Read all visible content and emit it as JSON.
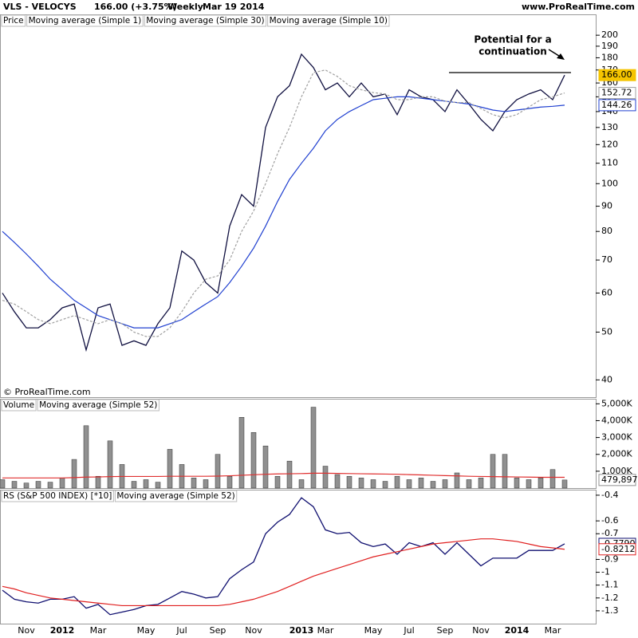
{
  "chart_data": [
    {
      "type": "line",
      "title": "VLS - VELOCYS",
      "subtitle": "166.00 (+3.75%)",
      "period": "Weekly",
      "date": "Mar 19 2014",
      "source": "www.ProRealTime.com",
      "copyright": "© ProRealTime.com",
      "panel_label": "Price",
      "annotation": [
        "Potential for a",
        "continuation"
      ],
      "level": 168,
      "log_scale": true,
      "ylim": [
        36.9,
        207.7
      ],
      "yticks": [
        40,
        50,
        60,
        70,
        80,
        90,
        100,
        110,
        120,
        130,
        140,
        150,
        160,
        170,
        180,
        190,
        200
      ],
      "series": [
        {
          "name": "Moving average (Simple 1)",
          "color": "#101040",
          "last_label": "166.00",
          "badge": "#f5c400",
          "values": [
            60,
            55,
            51,
            51,
            53,
            56,
            57,
            46,
            56,
            57,
            47,
            48,
            47,
            52,
            56,
            73,
            70,
            63,
            60,
            82,
            95,
            90,
            130,
            150,
            158,
            183,
            172,
            155,
            160,
            150,
            160,
            150,
            152,
            138,
            155,
            150,
            148,
            140,
            155,
            145,
            135,
            128,
            140,
            148,
            152,
            155,
            148,
            166
          ]
        },
        {
          "name": "Moving average (Simple 30)",
          "color": "#2040d0",
          "last_label": "144.26",
          "badge": "#2040d0",
          "values": [
            80,
            76,
            72,
            68,
            64,
            61,
            58,
            56,
            54,
            53,
            52,
            51,
            51,
            51,
            52,
            53,
            55,
            57,
            59,
            63,
            68,
            74,
            82,
            92,
            102,
            110,
            118,
            128,
            135,
            140,
            144,
            148,
            149,
            150,
            150,
            149,
            148,
            147,
            146,
            145,
            143,
            141,
            140,
            141,
            142,
            143,
            143.5,
            144.26
          ]
        },
        {
          "name": "Moving average (Simple 10)",
          "color": "#a0a0a0",
          "last_label": "152.72",
          "badge": "#a0a0a0",
          "dashed": true,
          "values": [
            58,
            57,
            55,
            53,
            52,
            53,
            54,
            53,
            52,
            53,
            52,
            50,
            49,
            49,
            51,
            55,
            60,
            64,
            65,
            70,
            80,
            88,
            100,
            115,
            130,
            150,
            168,
            170,
            165,
            158,
            155,
            153,
            152,
            148,
            148,
            150,
            150,
            147,
            146,
            146,
            142,
            138,
            136,
            138,
            143,
            148,
            150,
            152.72
          ]
        }
      ]
    },
    {
      "type": "bar",
      "panel_label": "Volume",
      "ylim": [
        0,
        5300000
      ],
      "yticks": [
        {
          "value": 1000000,
          "label": "1,000K"
        },
        {
          "value": 2000000,
          "label": "2,000K"
        },
        {
          "value": 3000000,
          "label": "3,000K"
        },
        {
          "value": 4000000,
          "label": "4,000K"
        },
        {
          "value": 5000000,
          "label": "5,000K"
        }
      ],
      "series": [
        {
          "name": "Volume",
          "color": "#909090",
          "last_label": "479,897",
          "values": [
            500000,
            400000,
            300000,
            400000,
            350000,
            600000,
            1700000,
            3700000,
            700000,
            2800000,
            1400000,
            400000,
            500000,
            350000,
            2300000,
            1400000,
            600000,
            500000,
            2000000,
            700000,
            4200000,
            3300000,
            2500000,
            700000,
            1600000,
            500000,
            4800000,
            1300000,
            800000,
            700000,
            600000,
            500000,
            400000,
            700000,
            500000,
            600000,
            400000,
            500000,
            900000,
            500000,
            600000,
            2000000,
            2000000,
            600000,
            500000,
            600000,
            1100000,
            479897
          ]
        },
        {
          "name": "Moving average (Simple 52)",
          "color": "#e03030",
          "values": [
            600000,
            600000,
            600000,
            600000,
            600000,
            600000,
            620000,
            650000,
            660000,
            680000,
            690000,
            690000,
            690000,
            690000,
            700000,
            700000,
            700000,
            700000,
            710000,
            730000,
            760000,
            790000,
            820000,
            840000,
            850000,
            860000,
            880000,
            880000,
            870000,
            860000,
            850000,
            840000,
            830000,
            820000,
            800000,
            780000,
            760000,
            740000,
            720000,
            700000,
            690000,
            680000,
            670000,
            660000,
            650000,
            640000,
            640000,
            640000
          ]
        }
      ]
    },
    {
      "type": "line",
      "ylim": [
        -1.4,
        -0.357
      ],
      "yticks": [
        -0.4,
        -0.6,
        -0.7,
        -0.9,
        -1,
        -1.1,
        -1.2,
        -1.3
      ],
      "categories": [
        null,
        null,
        "Nov",
        null,
        null,
        "2012",
        null,
        null,
        "Mar",
        null,
        null,
        null,
        "May",
        null,
        null,
        "Jul",
        null,
        null,
        "Sep",
        null,
        null,
        "Nov",
        null,
        null,
        null,
        "2013",
        null,
        "Mar",
        null,
        null,
        null,
        "May",
        null,
        null,
        "Jul",
        null,
        null,
        "Sep",
        null,
        null,
        "Nov",
        null,
        null,
        "2014",
        null,
        null,
        "Mar",
        null
      ],
      "series": [
        {
          "name": "RS (S&P 500 INDEX) [*10]",
          "color": "#101070",
          "last_label": "-0.7790",
          "values": [
            -1.14,
            -1.21,
            -1.23,
            -1.24,
            -1.21,
            -1.21,
            -1.19,
            -1.28,
            -1.25,
            -1.33,
            -1.31,
            -1.29,
            -1.26,
            -1.25,
            -1.2,
            -1.15,
            -1.17,
            -1.2,
            -1.19,
            -1.05,
            -0.98,
            -0.92,
            -0.7,
            -0.61,
            -0.55,
            -0.42,
            -0.49,
            -0.67,
            -0.7,
            -0.69,
            -0.77,
            -0.8,
            -0.78,
            -0.86,
            -0.77,
            -0.8,
            -0.77,
            -0.86,
            -0.77,
            -0.86,
            -0.95,
            -0.89,
            -0.89,
            -0.89,
            -0.83,
            -0.83,
            -0.83,
            -0.779
          ]
        },
        {
          "name": "Moving average (Simple 52)",
          "color": "#e02020",
          "last_label": "-0.8212",
          "values": [
            -1.11,
            -1.13,
            -1.16,
            -1.18,
            -1.2,
            -1.21,
            -1.22,
            -1.23,
            -1.24,
            -1.25,
            -1.26,
            -1.26,
            -1.26,
            -1.26,
            -1.26,
            -1.26,
            -1.26,
            -1.26,
            -1.26,
            -1.25,
            -1.23,
            -1.21,
            -1.18,
            -1.15,
            -1.11,
            -1.07,
            -1.03,
            -1,
            -0.97,
            -0.94,
            -0.91,
            -0.88,
            -0.86,
            -0.84,
            -0.82,
            -0.8,
            -0.78,
            -0.77,
            -0.76,
            -0.75,
            -0.74,
            -0.74,
            -0.75,
            -0.76,
            -0.78,
            -0.8,
            -0.81,
            -0.8212
          ]
        }
      ]
    }
  ]
}
